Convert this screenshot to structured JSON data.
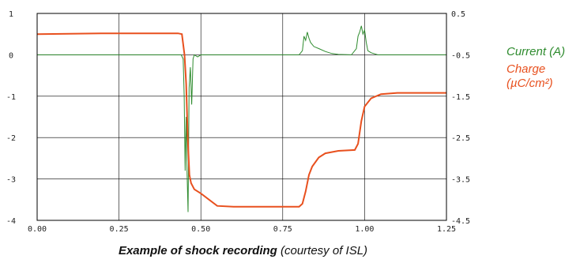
{
  "legend": {
    "current": "Current (A)",
    "charge": "Charge",
    "charge_unit": "(µC/cm²)"
  },
  "caption": {
    "bold": "Example of shock recording",
    "rest": "(courtesy of ISL)"
  },
  "colors": {
    "current": "#2e8b2e",
    "charge": "#e8501e",
    "grid": "#000000"
  },
  "chart_data": {
    "type": "line",
    "grid": true,
    "x": {
      "range": [
        0,
        1.25
      ],
      "ticks": [
        "0.00",
        "0.25",
        "0.50",
        "0.75",
        "1.00",
        "1.25"
      ]
    },
    "y_left": {
      "range": [
        -4,
        1
      ],
      "ticks": [
        "1",
        "0",
        "-1",
        "-2",
        "-3",
        "-4"
      ]
    },
    "y_right": {
      "range": [
        -4.5,
        0.5
      ],
      "ticks": [
        "0.5",
        "-0.5",
        "-1.5",
        "-2.5",
        "-3.5",
        "-4.5"
      ]
    },
    "series": [
      {
        "name": "Current (A)",
        "axis": "left",
        "points": [
          [
            0,
            0
          ],
          [
            0.44,
            0
          ],
          [
            0.446,
            -0.1
          ],
          [
            0.449,
            -1.0
          ],
          [
            0.452,
            -2.8
          ],
          [
            0.455,
            -1.5
          ],
          [
            0.458,
            -2.9
          ],
          [
            0.461,
            -3.8
          ],
          [
            0.464,
            -0.8
          ],
          [
            0.468,
            -0.3
          ],
          [
            0.472,
            -1.2
          ],
          [
            0.476,
            -0.1
          ],
          [
            0.48,
            0
          ],
          [
            0.49,
            -0.05
          ],
          [
            0.5,
            0
          ],
          [
            0.8,
            0
          ],
          [
            0.81,
            0.1
          ],
          [
            0.815,
            0.45
          ],
          [
            0.82,
            0.35
          ],
          [
            0.825,
            0.55
          ],
          [
            0.83,
            0.4
          ],
          [
            0.835,
            0.3
          ],
          [
            0.845,
            0.2
          ],
          [
            0.86,
            0.15
          ],
          [
            0.88,
            0.08
          ],
          [
            0.9,
            0.03
          ],
          [
            0.92,
            0.01
          ],
          [
            0.96,
            0
          ],
          [
            0.975,
            0.15
          ],
          [
            0.98,
            0.45
          ],
          [
            0.985,
            0.55
          ],
          [
            0.99,
            0.7
          ],
          [
            0.995,
            0.5
          ],
          [
            1.0,
            0.6
          ],
          [
            1.005,
            0.3
          ],
          [
            1.01,
            0.1
          ],
          [
            1.02,
            0.05
          ],
          [
            1.04,
            0
          ],
          [
            1.25,
            0
          ]
        ]
      },
      {
        "name": "Charge (µC/cm²)",
        "axis": "right",
        "points": [
          [
            0,
            0.0
          ],
          [
            0.2,
            0.02
          ],
          [
            0.43,
            0.02
          ],
          [
            0.442,
            0.0
          ],
          [
            0.45,
            -0.5
          ],
          [
            0.455,
            -1.2
          ],
          [
            0.46,
            -2.5
          ],
          [
            0.465,
            -3.4
          ],
          [
            0.47,
            -3.6
          ],
          [
            0.48,
            -3.75
          ],
          [
            0.5,
            -3.85
          ],
          [
            0.55,
            -4.15
          ],
          [
            0.6,
            -4.17
          ],
          [
            0.75,
            -4.17
          ],
          [
            0.8,
            -4.17
          ],
          [
            0.81,
            -4.1
          ],
          [
            0.82,
            -3.8
          ],
          [
            0.83,
            -3.4
          ],
          [
            0.84,
            -3.2
          ],
          [
            0.86,
            -2.98
          ],
          [
            0.88,
            -2.88
          ],
          [
            0.92,
            -2.82
          ],
          [
            0.97,
            -2.8
          ],
          [
            0.98,
            -2.65
          ],
          [
            0.99,
            -2.1
          ],
          [
            1.0,
            -1.75
          ],
          [
            1.02,
            -1.55
          ],
          [
            1.05,
            -1.45
          ],
          [
            1.1,
            -1.42
          ],
          [
            1.25,
            -1.42
          ]
        ]
      }
    ]
  }
}
